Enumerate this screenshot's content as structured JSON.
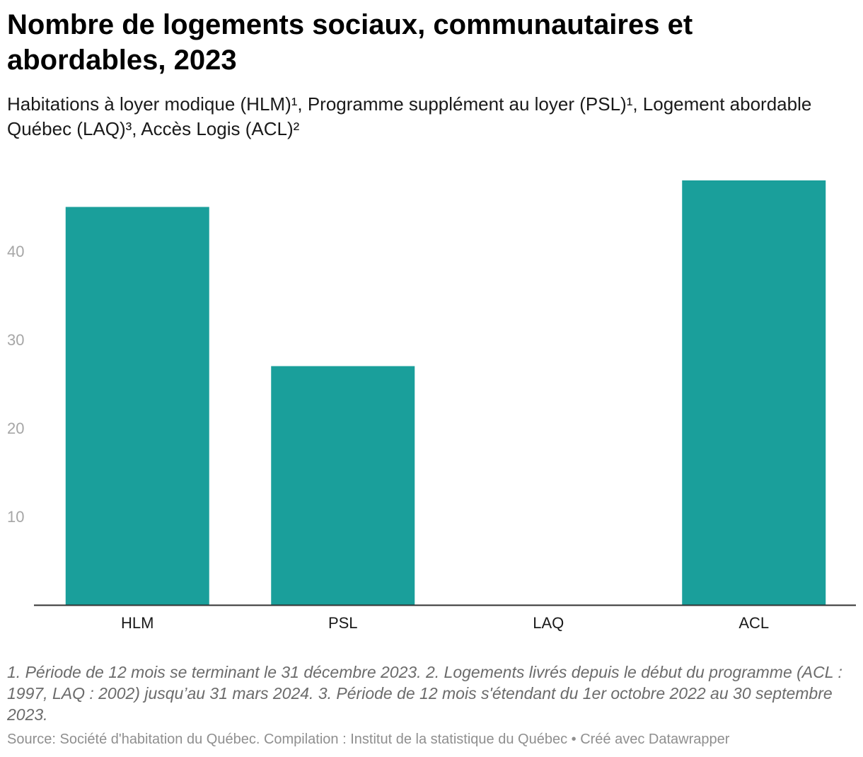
{
  "title": "Nombre de logements sociaux, communautaires et abordables, 2023",
  "subtitle": "Habitations à loyer modique (HLM)¹, Programme supplément au loyer (PSL)¹, Logement abordable Québec (LAQ)³, Accès Logis (ACL)²",
  "notes": "1. Période de 12 mois se terminant le 31 décembre 2023. 2. Logements livrés depuis le début du programme (ACL : 1997, LAQ : 2002) jusqu’au 31 mars 2024. 3. Période de 12 mois s'étendant du 1er octobre 2022 au 30 septembre 2023.",
  "source": "Source: Société d'habitation du Québec. Compilation : Institut de la statistique du Québec • Créé avec Datawrapper",
  "colors": {
    "bar": "#1a9f9b",
    "axis": "#333333",
    "tick_label": "#a6a6a6"
  },
  "chart_data": {
    "type": "bar",
    "categories": [
      "HLM",
      "PSL",
      "LAQ",
      "ACL"
    ],
    "values": [
      45,
      27,
      0,
      48
    ],
    "yticks": [
      10,
      20,
      30,
      40
    ],
    "ylim": [
      0,
      48
    ],
    "grid": false,
    "legend": "none"
  }
}
